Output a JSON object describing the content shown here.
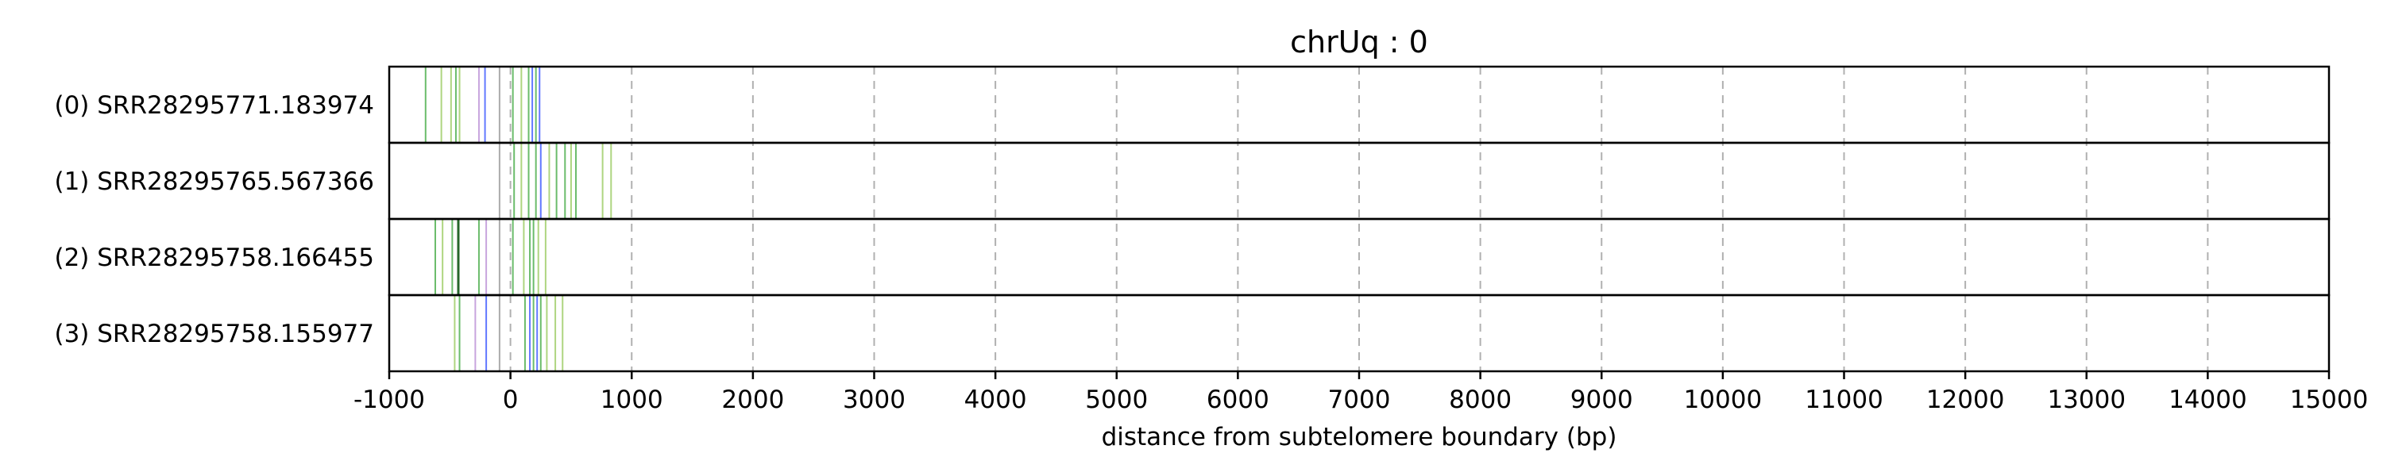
{
  "chart_data": {
    "type": "line",
    "title": "chrUq : 0",
    "xlabel": "distance from subtelomere boundary (bp)",
    "ylabel": "",
    "xlim": [
      -1000,
      15000
    ],
    "xticks": [
      -1000,
      0,
      1000,
      2000,
      3000,
      4000,
      5000,
      6000,
      7000,
      8000,
      9000,
      10000,
      11000,
      12000,
      13000,
      14000,
      15000
    ],
    "x_grid": "dashed vertical",
    "colors": {
      "green": "#2ca02c",
      "lime": "#8bc34a",
      "blue": "#1f3fff",
      "purple": "#b07fd0",
      "gray": "#888888",
      "dark": "#1b5e20"
    },
    "reads": [
      {
        "label": "(0) SRR28295771.183974",
        "marks": [
          {
            "x": -700,
            "color": "green"
          },
          {
            "x": -570,
            "color": "lime"
          },
          {
            "x": -490,
            "color": "lime"
          },
          {
            "x": -450,
            "color": "green"
          },
          {
            "x": -420,
            "color": "lime"
          },
          {
            "x": -260,
            "color": "purple"
          },
          {
            "x": -210,
            "color": "blue"
          },
          {
            "x": -90,
            "color": "gray"
          },
          {
            "x": 20,
            "color": "green"
          },
          {
            "x": 90,
            "color": "lime"
          },
          {
            "x": 150,
            "color": "green"
          },
          {
            "x": 180,
            "color": "blue"
          },
          {
            "x": 210,
            "color": "green"
          },
          {
            "x": 240,
            "color": "blue"
          }
        ]
      },
      {
        "label": "(1) SRR28295765.567366",
        "marks": [
          {
            "x": -90,
            "color": "gray"
          },
          {
            "x": 30,
            "color": "green"
          },
          {
            "x": 90,
            "color": "lime"
          },
          {
            "x": 150,
            "color": "green"
          },
          {
            "x": 210,
            "color": "green"
          },
          {
            "x": 250,
            "color": "blue"
          },
          {
            "x": 320,
            "color": "lime"
          },
          {
            "x": 380,
            "color": "green"
          },
          {
            "x": 450,
            "color": "green"
          },
          {
            "x": 500,
            "color": "lime"
          },
          {
            "x": 540,
            "color": "green"
          },
          {
            "x": 760,
            "color": "lime"
          },
          {
            "x": 830,
            "color": "lime"
          }
        ]
      },
      {
        "label": "(2) SRR28295758.166455",
        "marks": [
          {
            "x": -620,
            "color": "green"
          },
          {
            "x": -560,
            "color": "lime"
          },
          {
            "x": -480,
            "color": "green"
          },
          {
            "x": -430,
            "color": "dark"
          },
          {
            "x": -260,
            "color": "green"
          },
          {
            "x": -200,
            "color": "purple"
          },
          {
            "x": -90,
            "color": "gray"
          },
          {
            "x": 20,
            "color": "green"
          },
          {
            "x": 110,
            "color": "lime"
          },
          {
            "x": 160,
            "color": "green"
          },
          {
            "x": 190,
            "color": "green"
          },
          {
            "x": 230,
            "color": "lime"
          },
          {
            "x": 290,
            "color": "lime"
          }
        ]
      },
      {
        "label": "(3) SRR28295758.155977",
        "marks": [
          {
            "x": -460,
            "color": "lime"
          },
          {
            "x": -420,
            "color": "green"
          },
          {
            "x": -290,
            "color": "purple"
          },
          {
            "x": -200,
            "color": "blue"
          },
          {
            "x": -90,
            "color": "gray"
          },
          {
            "x": 120,
            "color": "green"
          },
          {
            "x": 160,
            "color": "blue"
          },
          {
            "x": 190,
            "color": "green"
          },
          {
            "x": 220,
            "color": "blue"
          },
          {
            "x": 250,
            "color": "green"
          },
          {
            "x": 300,
            "color": "lime"
          },
          {
            "x": 370,
            "color": "lime"
          },
          {
            "x": 430,
            "color": "lime"
          }
        ]
      }
    ]
  }
}
